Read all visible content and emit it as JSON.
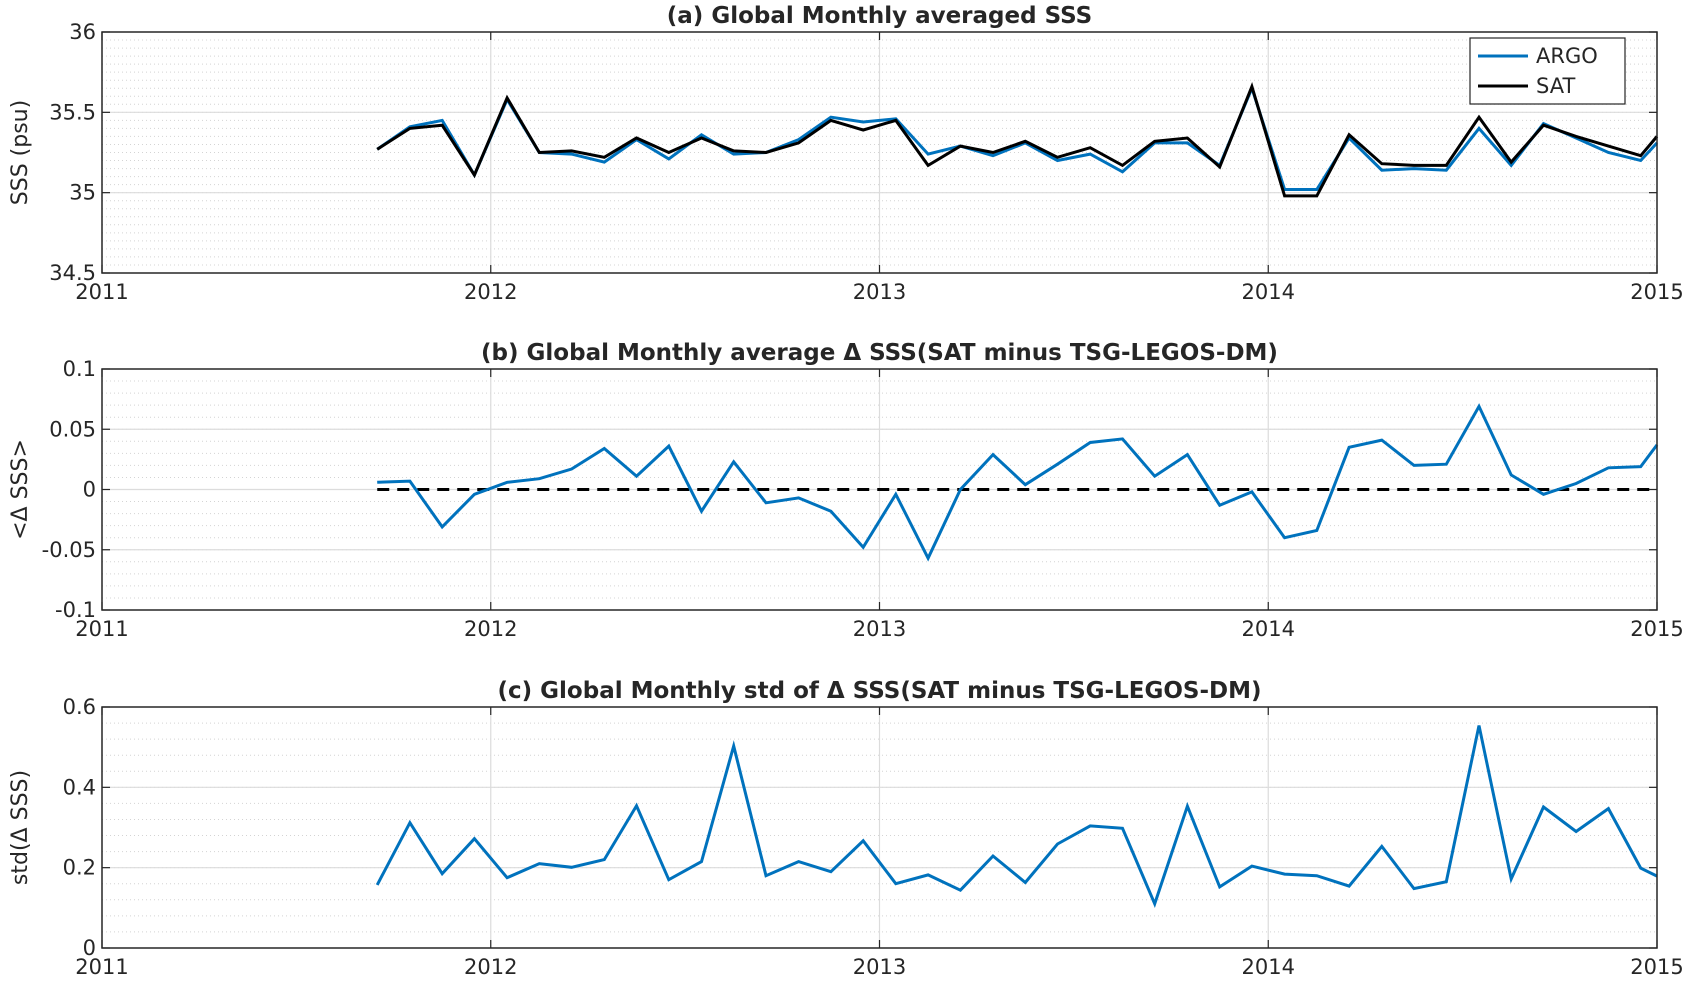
{
  "chart_data": [
    {
      "type": "line",
      "title": "(a) Global Monthly averaged SSS",
      "ylabel": "SSS (psu)",
      "xlabel": "",
      "xlim": [
        2011,
        2015
      ],
      "ylim": [
        34.5,
        36
      ],
      "xticks": [
        2011,
        2012,
        2013,
        2014,
        2015
      ],
      "xtick_labels": [
        "2011",
        "2012",
        "2013",
        "2014",
        "2015"
      ],
      "yticks": [
        34.5,
        35,
        35.5,
        36
      ],
      "ytick_labels": [
        "34.5",
        "35",
        "35.5",
        "36"
      ],
      "ygrid_minor_step": 0.05,
      "grid": true,
      "legend": {
        "placement": "top-right"
      },
      "series": [
        {
          "name": "ARGO",
          "color": "#0072bd",
          "x": [
            2011.708,
            2011.792,
            2011.875,
            2011.958,
            2012.042,
            2012.125,
            2012.208,
            2012.292,
            2012.375,
            2012.458,
            2012.542,
            2012.625,
            2012.708,
            2012.792,
            2012.875,
            2012.958,
            2013.042,
            2013.125,
            2013.208,
            2013.292,
            2013.375,
            2013.458,
            2013.542,
            2013.625,
            2013.708,
            2013.792,
            2013.875,
            2013.958,
            2014.042,
            2014.125,
            2014.208,
            2014.292,
            2014.375,
            2014.458,
            2014.542,
            2014.625,
            2014.708,
            2014.792,
            2014.875,
            2014.958,
            2015.0
          ],
          "y": [
            35.27,
            35.41,
            35.45,
            35.11,
            35.58,
            35.25,
            35.24,
            35.19,
            35.33,
            35.21,
            35.36,
            35.24,
            35.25,
            35.33,
            35.47,
            35.44,
            35.46,
            35.24,
            35.29,
            35.23,
            35.31,
            35.2,
            35.24,
            35.13,
            35.31,
            35.31,
            35.17,
            35.65,
            35.02,
            35.02,
            35.34,
            35.14,
            35.15,
            35.14,
            35.4,
            35.17,
            35.43,
            35.34,
            35.25,
            35.2,
            35.31
          ]
        },
        {
          "name": "SAT",
          "color": "#000000",
          "x": [
            2011.708,
            2011.792,
            2011.875,
            2011.958,
            2012.042,
            2012.125,
            2012.208,
            2012.292,
            2012.375,
            2012.458,
            2012.542,
            2012.625,
            2012.708,
            2012.792,
            2012.875,
            2012.958,
            2013.042,
            2013.125,
            2013.208,
            2013.292,
            2013.375,
            2013.458,
            2013.542,
            2013.625,
            2013.708,
            2013.792,
            2013.875,
            2013.958,
            2014.042,
            2014.125,
            2014.208,
            2014.292,
            2014.375,
            2014.458,
            2014.542,
            2014.625,
            2014.708,
            2014.792,
            2014.875,
            2014.958,
            2015.0
          ],
          "y": [
            35.27,
            35.4,
            35.42,
            35.11,
            35.59,
            35.25,
            35.26,
            35.22,
            35.34,
            35.25,
            35.34,
            35.26,
            35.25,
            35.31,
            35.45,
            35.39,
            35.45,
            35.17,
            35.29,
            35.25,
            35.32,
            35.22,
            35.28,
            35.17,
            35.32,
            35.34,
            35.16,
            35.66,
            34.98,
            34.98,
            35.36,
            35.18,
            35.17,
            35.17,
            35.47,
            35.19,
            35.42,
            35.35,
            35.29,
            35.23,
            35.35
          ]
        }
      ]
    },
    {
      "type": "line",
      "title": "(b) Global Monthly average Δ SSS(SAT minus TSG-LEGOS-DM)",
      "ylabel": "<Δ SSS>",
      "xlabel": "",
      "xlim": [
        2011,
        2015
      ],
      "ylim": [
        -0.1,
        0.1
      ],
      "xticks": [
        2011,
        2012,
        2013,
        2014,
        2015
      ],
      "xtick_labels": [
        "2011",
        "2012",
        "2013",
        "2014",
        "2015"
      ],
      "yticks": [
        -0.1,
        -0.05,
        0,
        0.05,
        0.1
      ],
      "ytick_labels": [
        "-0.1",
        "-0.05",
        "0",
        "0.05",
        "0.1"
      ],
      "ygrid_minor_step": 0.01,
      "grid": true,
      "reference_line": {
        "y": 0,
        "style": "dashed",
        "color": "#000000"
      },
      "series": [
        {
          "color": "#0072bd",
          "x": [
            2011.708,
            2011.792,
            2011.875,
            2011.958,
            2012.042,
            2012.125,
            2012.208,
            2012.292,
            2012.375,
            2012.458,
            2012.542,
            2012.625,
            2012.708,
            2012.792,
            2012.875,
            2012.958,
            2013.042,
            2013.125,
            2013.208,
            2013.292,
            2013.375,
            2013.458,
            2013.542,
            2013.625,
            2013.708,
            2013.792,
            2013.875,
            2013.958,
            2014.042,
            2014.125,
            2014.208,
            2014.292,
            2014.375,
            2014.458,
            2014.542,
            2014.625,
            2014.708,
            2014.792,
            2014.875,
            2014.958,
            2015.0
          ],
          "y": [
            0.006,
            0.007,
            -0.031,
            -0.004,
            0.006,
            0.009,
            0.017,
            0.034,
            0.011,
            0.036,
            -0.018,
            0.023,
            -0.011,
            -0.007,
            -0.018,
            -0.048,
            -0.004,
            -0.057,
            0.0,
            0.029,
            0.004,
            0.021,
            0.039,
            0.042,
            0.011,
            0.029,
            -0.013,
            -0.002,
            -0.04,
            -0.034,
            0.035,
            0.041,
            0.02,
            0.021,
            0.069,
            0.012,
            -0.004,
            0.005,
            0.018,
            0.019,
            0.037
          ]
        }
      ]
    },
    {
      "type": "line",
      "title": "(c) Global Monthly std of Δ SSS(SAT minus TSG-LEGOS-DM)",
      "ylabel": "std(Δ SSS)",
      "xlabel": "",
      "xlim": [
        2011,
        2015
      ],
      "ylim": [
        0,
        0.6
      ],
      "xticks": [
        2011,
        2012,
        2013,
        2014,
        2015
      ],
      "xtick_labels": [
        "2011",
        "2012",
        "2013",
        "2014",
        "2015"
      ],
      "yticks": [
        0,
        0.2,
        0.4,
        0.6
      ],
      "ytick_labels": [
        "0",
        "0.2",
        "0.4",
        "0.6"
      ],
      "ygrid_minor_step": 0.04,
      "grid": true,
      "series": [
        {
          "color": "#0072bd",
          "x": [
            2011.708,
            2011.792,
            2011.875,
            2011.958,
            2012.042,
            2012.125,
            2012.208,
            2012.292,
            2012.375,
            2012.458,
            2012.542,
            2012.625,
            2012.708,
            2012.792,
            2012.875,
            2012.958,
            2013.042,
            2013.125,
            2013.208,
            2013.292,
            2013.375,
            2013.458,
            2013.542,
            2013.625,
            2013.708,
            2013.792,
            2013.875,
            2013.958,
            2014.042,
            2014.125,
            2014.208,
            2014.292,
            2014.375,
            2014.458,
            2014.542,
            2014.625,
            2014.708,
            2014.792,
            2014.875,
            2014.958,
            2015.0
          ],
          "y": [
            0.157,
            0.312,
            0.185,
            0.272,
            0.175,
            0.21,
            0.201,
            0.22,
            0.354,
            0.17,
            0.215,
            0.503,
            0.18,
            0.215,
            0.19,
            0.267,
            0.16,
            0.182,
            0.144,
            0.229,
            0.163,
            0.259,
            0.304,
            0.298,
            0.11,
            0.353,
            0.152,
            0.204,
            0.184,
            0.18,
            0.154,
            0.253,
            0.148,
            0.165,
            0.554,
            0.172,
            0.351,
            0.29,
            0.347,
            0.199,
            0.179
          ]
        }
      ]
    }
  ]
}
